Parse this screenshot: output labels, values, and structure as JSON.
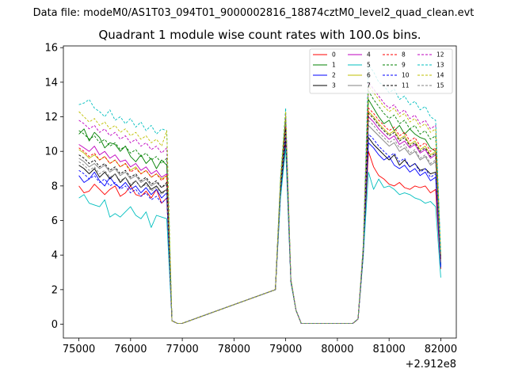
{
  "header": {
    "suptitle": "Data file: modeM0/AS1T03_094T01_9000002816_18874cztM0_level2_quad_clean.evt"
  },
  "chart_data": {
    "type": "line",
    "title": "Quadrant 1 module wise count rates with 100.0s bins.",
    "xlabel": "",
    "ylabel": "",
    "x_offset_label": "+2.912e8",
    "xlim": [
      74700,
      82300
    ],
    "ylim": [
      -0.8,
      16.1
    ],
    "x_ticks": [
      75000,
      76000,
      77000,
      78000,
      79000,
      80000,
      81000,
      82000
    ],
    "x_tick_labels": [
      "75000",
      "76000",
      "77000",
      "78000",
      "79000",
      "80000",
      "81000",
      "82000"
    ],
    "y_ticks": [
      0,
      2,
      4,
      6,
      8,
      10,
      12,
      14,
      16
    ],
    "y_tick_labels": [
      "0",
      "2",
      "4",
      "6",
      "8",
      "10",
      "12",
      "14",
      "16"
    ],
    "legend_location": "top-right",
    "x_seg1": [
      75000,
      75100,
      75200,
      75300,
      75400,
      75500,
      75600,
      75700,
      75800,
      75900,
      76000,
      76100,
      76200,
      76300,
      76400,
      76500,
      76600,
      76700,
      76800
    ],
    "x_mid": [
      78800,
      78900,
      79000,
      79100,
      79200
    ],
    "x_seg3": [
      80400,
      80500,
      80600,
      80700,
      80800,
      80900,
      81000,
      81100,
      81200,
      81300,
      81400,
      81500,
      81600,
      81700,
      81800,
      81900,
      82000
    ],
    "x_gap1": [
      76900,
      77000
    ],
    "x_gap2": [
      79300,
      80300
    ],
    "series": [
      {
        "name": "0",
        "color": "#ff0000",
        "dash": "solid",
        "seg1": [
          8.0,
          7.6,
          7.7,
          8.1,
          7.8,
          7.5,
          7.8,
          8.0,
          7.4,
          7.6,
          8.0,
          7.5,
          7.4,
          7.7,
          7.3,
          7.8,
          7.0,
          7.3,
          0.2
        ],
        "mid": [
          2.0,
          7.5,
          10.5,
          2.5,
          0.8
        ],
        "seg3": [
          0.3,
          4.0,
          10.0,
          9.1,
          8.6,
          8.4,
          8.1,
          8.0,
          8.2,
          7.9,
          7.8,
          8.0,
          7.9,
          8.0,
          7.6,
          7.8,
          3.2
        ]
      },
      {
        "name": "1",
        "color": "#008000",
        "dash": "solid",
        "seg1": [
          11.0,
          11.3,
          10.6,
          11.1,
          10.8,
          10.2,
          10.5,
          10.4,
          10.0,
          10.3,
          9.7,
          9.4,
          9.8,
          9.3,
          9.6,
          9.0,
          9.5,
          9.2,
          0.2
        ],
        "mid": [
          2.0,
          8.0,
          11.5,
          2.5,
          0.8
        ],
        "seg3": [
          0.3,
          4.3,
          13.0,
          12.5,
          12.0,
          11.6,
          11.8,
          11.2,
          11.5,
          11.0,
          11.3,
          11.0,
          10.8,
          10.7,
          10.2,
          10.0,
          3.5
        ]
      },
      {
        "name": "2",
        "color": "#0000ff",
        "dash": "solid",
        "seg1": [
          8.6,
          8.2,
          8.4,
          8.8,
          8.3,
          8.0,
          8.5,
          8.1,
          7.9,
          8.2,
          7.8,
          8.0,
          7.6,
          7.9,
          7.5,
          7.8,
          7.3,
          7.6,
          0.2
        ],
        "mid": [
          2.0,
          7.8,
          10.8,
          2.5,
          0.8
        ],
        "seg3": [
          0.3,
          4.1,
          10.5,
          10.2,
          9.8,
          9.5,
          9.7,
          9.2,
          9.0,
          9.2,
          8.8,
          9.0,
          8.6,
          8.8,
          8.3,
          8.5,
          3.3
        ]
      },
      {
        "name": "3",
        "color": "#000000",
        "dash": "solid",
        "seg1": [
          9.2,
          9.0,
          8.7,
          9.0,
          8.5,
          8.8,
          8.4,
          8.7,
          8.2,
          8.5,
          8.0,
          8.3,
          7.9,
          8.2,
          7.8,
          8.0,
          7.6,
          7.8,
          0.2
        ],
        "mid": [
          2.0,
          7.6,
          10.7,
          2.5,
          0.8
        ],
        "seg3": [
          0.3,
          4.0,
          10.8,
          10.4,
          10.1,
          9.8,
          9.5,
          9.8,
          9.2,
          9.5,
          9.1,
          9.3,
          8.9,
          9.0,
          8.7,
          8.8,
          3.8
        ]
      },
      {
        "name": "4",
        "color": "#bf00bf",
        "dash": "solid",
        "seg1": [
          10.4,
          10.2,
          10.0,
          10.3,
          9.8,
          10.0,
          9.6,
          9.8,
          9.4,
          9.5,
          9.1,
          9.3,
          8.9,
          9.1,
          8.7,
          8.9,
          8.5,
          8.7,
          0.2
        ],
        "mid": [
          2.0,
          8.0,
          11.2,
          2.5,
          0.8
        ],
        "seg3": [
          0.3,
          4.2,
          12.0,
          11.7,
          11.3,
          11.0,
          10.7,
          10.9,
          10.4,
          10.6,
          10.2,
          10.4,
          9.9,
          10.1,
          9.6,
          9.8,
          3.6
        ]
      },
      {
        "name": "5",
        "color": "#00bfbf",
        "dash": "solid",
        "seg1": [
          7.3,
          7.5,
          7.0,
          6.9,
          6.8,
          7.2,
          6.2,
          6.4,
          6.2,
          6.5,
          6.8,
          6.3,
          6.1,
          6.5,
          5.6,
          6.3,
          6.2,
          6.1,
          0.2
        ],
        "mid": [
          2.0,
          7.3,
          10.2,
          2.4,
          0.8
        ],
        "seg3": [
          0.3,
          3.9,
          8.8,
          7.8,
          8.4,
          7.9,
          8.0,
          7.8,
          7.5,
          7.6,
          7.5,
          7.3,
          7.2,
          7.0,
          7.1,
          6.8,
          2.7
        ]
      },
      {
        "name": "6",
        "color": "#bfbf00",
        "dash": "solid",
        "seg1": [
          10.1,
          9.9,
          9.6,
          9.8,
          9.5,
          9.7,
          9.3,
          9.5,
          9.1,
          9.3,
          8.9,
          9.1,
          8.7,
          8.9,
          8.5,
          8.7,
          8.4,
          8.6,
          0.2
        ],
        "mid": [
          2.0,
          8.2,
          12.0,
          2.6,
          0.8
        ],
        "seg3": [
          0.3,
          4.3,
          12.3,
          12.0,
          11.6,
          11.3,
          11.0,
          11.2,
          10.7,
          10.9,
          10.4,
          10.6,
          10.1,
          10.3,
          9.8,
          10.0,
          3.9
        ]
      },
      {
        "name": "7",
        "color": "#808080",
        "dash": "solid",
        "seg1": [
          9.6,
          9.4,
          9.1,
          9.3,
          9.0,
          9.2,
          8.8,
          9.0,
          8.6,
          8.8,
          8.4,
          8.6,
          8.2,
          8.4,
          8.0,
          8.2,
          7.9,
          8.1,
          0.2
        ],
        "mid": [
          2.0,
          8.1,
          11.7,
          2.5,
          0.8
        ],
        "seg3": [
          0.3,
          4.2,
          11.5,
          11.2,
          10.9,
          10.6,
          10.3,
          10.5,
          10.0,
          10.2,
          9.8,
          10.0,
          9.5,
          9.7,
          9.2,
          9.4,
          3.7
        ]
      },
      {
        "name": "8",
        "color": "#ff0000",
        "dash": "dashed",
        "seg1": [
          10.2,
          10.0,
          9.7,
          9.9,
          9.5,
          9.7,
          9.3,
          9.5,
          9.1,
          9.3,
          8.8,
          9.0,
          8.7,
          8.9,
          8.5,
          8.7,
          8.3,
          8.6,
          0.2
        ],
        "mid": [
          2.0,
          8.0,
          11.4,
          2.5,
          0.8
        ],
        "seg3": [
          0.3,
          4.3,
          12.5,
          12.2,
          11.8,
          11.5,
          11.2,
          11.4,
          10.9,
          11.1,
          10.6,
          10.8,
          10.3,
          10.5,
          10.0,
          10.2,
          3.9
        ]
      },
      {
        "name": "9",
        "color": "#008000",
        "dash": "dashed",
        "seg1": [
          11.2,
          11.0,
          10.7,
          10.9,
          10.5,
          10.7,
          10.3,
          10.5,
          10.1,
          10.3,
          9.9,
          10.1,
          9.7,
          9.9,
          9.5,
          9.7,
          9.3,
          9.6,
          0.2
        ],
        "mid": [
          2.0,
          8.3,
          12.0,
          2.6,
          0.8
        ],
        "seg3": [
          0.3,
          4.4,
          13.5,
          13.0,
          12.6,
          12.2,
          11.9,
          12.1,
          11.6,
          11.8,
          11.3,
          11.5,
          11.0,
          11.2,
          10.7,
          10.9,
          3.8
        ]
      },
      {
        "name": "10",
        "color": "#0000ff",
        "dash": "dashed",
        "seg1": [
          8.9,
          8.7,
          8.4,
          8.6,
          8.2,
          8.4,
          8.0,
          8.2,
          7.8,
          8.0,
          7.6,
          7.8,
          7.4,
          7.6,
          7.2,
          7.4,
          7.0,
          7.3,
          0.2
        ],
        "mid": [
          2.0,
          7.7,
          10.9,
          2.5,
          0.8
        ],
        "seg3": [
          0.3,
          4.1,
          11.0,
          10.7,
          10.3,
          10.0,
          9.7,
          9.9,
          9.4,
          9.6,
          9.1,
          9.3,
          8.8,
          9.0,
          8.5,
          8.7,
          3.4
        ]
      },
      {
        "name": "11",
        "color": "#000000",
        "dash": "dashed",
        "seg1": [
          9.8,
          9.6,
          9.3,
          9.5,
          9.1,
          9.3,
          8.9,
          9.1,
          8.7,
          8.9,
          8.5,
          8.7,
          8.3,
          8.5,
          8.1,
          8.3,
          7.9,
          8.2,
          0.2
        ],
        "mid": [
          2.0,
          7.9,
          11.3,
          2.5,
          0.8
        ],
        "seg3": [
          0.3,
          4.2,
          12.2,
          11.9,
          11.5,
          11.2,
          10.9,
          11.1,
          10.6,
          10.8,
          10.3,
          10.5,
          10.0,
          10.2,
          9.7,
          9.9,
          3.7
        ]
      },
      {
        "name": "12",
        "color": "#bf00bf",
        "dash": "dashed",
        "seg1": [
          11.8,
          11.6,
          11.3,
          11.5,
          11.1,
          11.3,
          10.9,
          11.1,
          10.7,
          10.9,
          10.5,
          10.7,
          10.3,
          10.5,
          10.1,
          10.3,
          9.9,
          10.2,
          0.2
        ],
        "mid": [
          2.0,
          8.4,
          12.2,
          2.6,
          0.8
        ],
        "seg3": [
          0.3,
          4.5,
          14.0,
          13.6,
          13.2,
          12.8,
          12.5,
          12.7,
          12.2,
          12.4,
          11.9,
          12.1,
          11.6,
          11.8,
          11.3,
          11.5,
          3.9
        ]
      },
      {
        "name": "13",
        "color": "#00bfbf",
        "dash": "dashed",
        "seg1": [
          12.7,
          12.8,
          13.0,
          12.5,
          12.3,
          12.0,
          12.4,
          11.8,
          12.0,
          11.6,
          11.9,
          11.4,
          11.7,
          11.2,
          11.5,
          11.0,
          11.3,
          11.2,
          0.2
        ],
        "mid": [
          2.0,
          8.5,
          12.5,
          2.6,
          0.8
        ],
        "seg3": [
          0.3,
          4.6,
          15.0,
          14.6,
          14.0,
          13.8,
          13.4,
          13.6,
          13.0,
          13.2,
          12.7,
          12.9,
          12.4,
          12.6,
          12.0,
          11.8,
          4.2
        ]
      },
      {
        "name": "14",
        "color": "#bfbf00",
        "dash": "dashed",
        "seg1": [
          12.3,
          12.0,
          11.7,
          11.9,
          11.5,
          11.7,
          11.3,
          11.5,
          11.1,
          11.3,
          10.9,
          11.1,
          10.7,
          10.9,
          10.5,
          10.7,
          10.3,
          11.2,
          0.2
        ],
        "mid": [
          2.0,
          8.4,
          12.3,
          2.6,
          0.8
        ],
        "seg3": [
          0.3,
          4.5,
          13.8,
          13.4,
          13.0,
          12.6,
          12.3,
          12.5,
          12.0,
          12.2,
          11.7,
          11.9,
          11.4,
          11.6,
          11.1,
          11.3,
          4.0
        ]
      },
      {
        "name": "15",
        "color": "#808080",
        "dash": "dashed",
        "seg1": [
          9.4,
          9.2,
          8.9,
          9.1,
          8.7,
          8.9,
          8.5,
          8.7,
          8.3,
          8.5,
          8.1,
          8.3,
          7.9,
          8.1,
          7.7,
          7.9,
          7.5,
          7.8,
          0.2
        ],
        "mid": [
          2.0,
          7.9,
          11.1,
          2.5,
          0.8
        ],
        "seg3": [
          0.3,
          4.2,
          11.8,
          11.5,
          11.1,
          10.8,
          10.5,
          10.7,
          10.2,
          10.4,
          9.9,
          10.1,
          9.6,
          9.8,
          9.3,
          9.5,
          3.6
        ]
      }
    ]
  }
}
